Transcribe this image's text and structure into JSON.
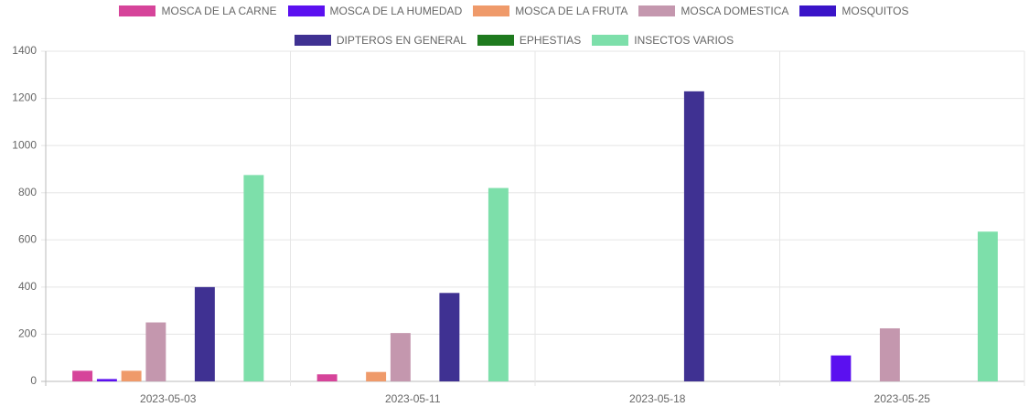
{
  "chart_data": {
    "type": "bar",
    "categories": [
      "2023-05-03",
      "2023-05-11",
      "2023-05-18",
      "2023-05-25"
    ],
    "series": [
      {
        "name": "MOSCA DE LA CARNE",
        "color": "#d6449a",
        "values": [
          45,
          30,
          0,
          0
        ]
      },
      {
        "name": "MOSCA DE LA HUMEDAD",
        "color": "#5b10f0",
        "values": [
          10,
          0,
          0,
          110
        ]
      },
      {
        "name": "MOSCA DE LA FRUTA",
        "color": "#ef9a6a",
        "values": [
          45,
          40,
          0,
          0
        ]
      },
      {
        "name": "MOSCA DOMESTICA",
        "color": "#c497ae",
        "values": [
          250,
          205,
          0,
          225
        ]
      },
      {
        "name": "MOSQUITOS",
        "color": "#3a14c8",
        "values": [
          0,
          0,
          0,
          0
        ]
      },
      {
        "name": "DIPTEROS EN GENERAL",
        "color": "#3f3192",
        "values": [
          400,
          375,
          1230,
          0
        ]
      },
      {
        "name": "EPHESTIAS",
        "color": "#1e7a1e",
        "values": [
          0,
          0,
          0,
          0
        ]
      },
      {
        "name": "INSECTOS VARIOS",
        "color": "#7ddfaa",
        "values": [
          875,
          820,
          0,
          635
        ]
      }
    ],
    "ylim": [
      0,
      1400
    ],
    "yticks": [
      0,
      200,
      400,
      600,
      800,
      1000,
      1200,
      1400
    ],
    "grid": true
  }
}
